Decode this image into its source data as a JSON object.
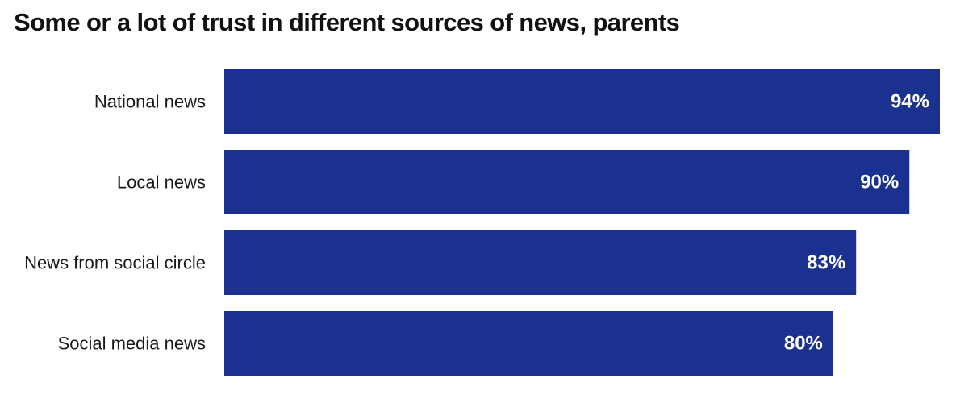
{
  "colors": {
    "bar": "#1b318f",
    "background": "#ffffff",
    "text": "#1a1a1a",
    "value_text": "#ffffff"
  },
  "chart_data": {
    "type": "bar",
    "orientation": "horizontal",
    "title": "Some or a lot of trust in different sources of news, parents",
    "categories": [
      "National news",
      "Local news",
      "News from social circle",
      "Social media news"
    ],
    "values": [
      94,
      90,
      83,
      80
    ],
    "value_labels": [
      "94%",
      "90%",
      "83%",
      "80%"
    ],
    "xlim": [
      0,
      94
    ],
    "grid": false,
    "legend": "none"
  }
}
